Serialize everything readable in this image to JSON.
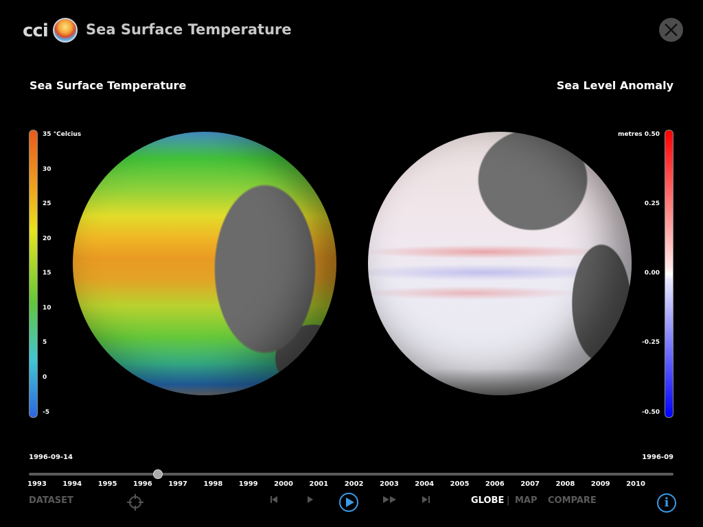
{
  "header": {
    "brand": "cci",
    "title": "Sea Surface Temperature",
    "logo_icon": "globe-logo-icon",
    "close_icon": "close-icon"
  },
  "left_panel": {
    "title": "Sea Surface Temperature",
    "legend_ticks": [
      "35 °Celcius",
      "30",
      "25",
      "20",
      "15",
      "10",
      "5",
      "0",
      "-5"
    ]
  },
  "right_panel": {
    "title": "Sea Level Anomaly",
    "legend_ticks": [
      "metres 0.50",
      "0.25",
      "0.00",
      "-0.25",
      "-0.50"
    ]
  },
  "timeline": {
    "current_date_left": "1996-09-14",
    "current_date_right": "1996-09",
    "years": [
      "1993",
      "1994",
      "1995",
      "1996",
      "1997",
      "1998",
      "1999",
      "2000",
      "2001",
      "2002",
      "2003",
      "2004",
      "2005",
      "2006",
      "2007",
      "2008",
      "2009",
      "2010"
    ],
    "position_fraction": 0.2
  },
  "toolbar": {
    "dataset_label": "DATASET",
    "target_icon": "crosshair-icon",
    "step_back_icon": "step-back-icon",
    "prev_icon": "prev-icon",
    "play_icon": "play-icon",
    "fast_forward_icon": "fast-forward-icon",
    "step_forward_icon": "step-forward-icon",
    "globe_label": "GLOBE",
    "separator": "|",
    "map_label": "MAP",
    "compare_label": "COMPARE",
    "info_label": "i"
  },
  "colors": {
    "accent": "#3b9be6",
    "active_view": "#ffffff",
    "inactive": "#5a5a5a"
  }
}
